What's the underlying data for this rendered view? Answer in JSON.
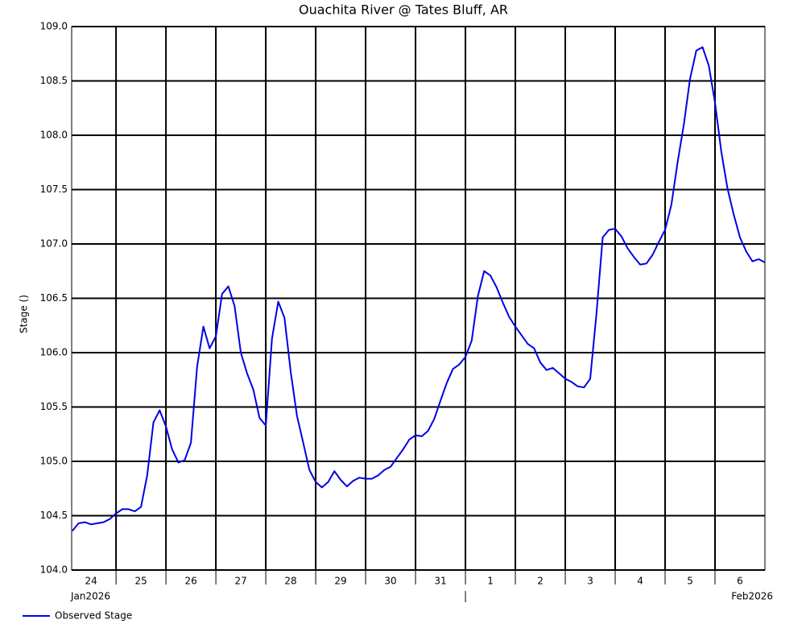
{
  "chart_data": {
    "type": "line",
    "title": "Ouachita River @ Tates Bluff, AR",
    "y_label": "Stage ()",
    "xlim": [
      "2026-01-24T02:40",
      "2026-02-07T00:00"
    ],
    "xgrid": [
      "2026-01-25T00:00",
      "2026-01-26T00:00",
      "2026-01-27T00:00",
      "2026-01-28T00:00",
      "2026-01-29T00:00",
      "2026-01-30T00:00",
      "2026-01-31T00:00",
      "2026-02-01T00:00",
      "2026-02-02T00:00",
      "2026-02-03T00:00",
      "2026-02-04T00:00",
      "2026-02-05T00:00",
      "2026-02-06T00:00"
    ],
    "xticks": [
      {
        "value": "2026-01-24T12:00",
        "label": "24"
      },
      {
        "value": "2026-01-25T12:00",
        "label": "25"
      },
      {
        "value": "2026-01-26T12:00",
        "label": "26"
      },
      {
        "value": "2026-01-27T12:00",
        "label": "27"
      },
      {
        "value": "2026-01-28T12:00",
        "label": "28"
      },
      {
        "value": "2026-01-29T12:00",
        "label": "29"
      },
      {
        "value": "2026-01-30T12:00",
        "label": "30"
      },
      {
        "value": "2026-01-31T12:00",
        "label": "31"
      },
      {
        "value": "2026-02-01T12:00",
        "label": "1"
      },
      {
        "value": "2026-02-02T12:00",
        "label": "2"
      },
      {
        "value": "2026-02-03T12:00",
        "label": "3"
      },
      {
        "value": "2026-02-04T12:00",
        "label": "4"
      },
      {
        "value": "2026-02-05T12:00",
        "label": "5"
      },
      {
        "value": "2026-02-06T12:00",
        "label": "6"
      }
    ],
    "month_ticks": [
      {
        "value": "2026-01-24T02:40",
        "label": "Jan2026"
      },
      {
        "value": "2026-02-01T00:00"
      },
      {
        "value": "2026-02-07T00:00",
        "label": "Feb2026"
      }
    ],
    "ylim": [
      104.0,
      109.0
    ],
    "yticks": [
      {
        "value": 104.0,
        "label": "104.0"
      },
      104.5,
      {
        "value": 105.0,
        "label": "105.0"
      },
      105.5,
      {
        "value": 106.0,
        "label": "106.0"
      },
      106.5,
      {
        "value": 107.0,
        "label": "107.0"
      },
      107.5,
      {
        "value": 108.0,
        "label": "108.0"
      },
      108.5,
      {
        "value": 109.0,
        "label": "109.0"
      }
    ],
    "grid": true,
    "legend": "bottom-left",
    "x": [
      "2026-01-24T03:00",
      "2026-01-24T06:00",
      "2026-01-24T09:00",
      "2026-01-24T12:00",
      "2026-01-24T15:00",
      "2026-01-24T18:00",
      "2026-01-24T21:00",
      "2026-01-25T00:00",
      "2026-01-25T03:00",
      "2026-01-25T06:00",
      "2026-01-25T09:00",
      "2026-01-25T12:00",
      "2026-01-25T15:00",
      "2026-01-25T18:00",
      "2026-01-25T21:00",
      "2026-01-26T00:00",
      "2026-01-26T03:00",
      "2026-01-26T06:00",
      "2026-01-26T09:00",
      "2026-01-26T12:00",
      "2026-01-26T15:00",
      "2026-01-26T18:00",
      "2026-01-26T21:00",
      "2026-01-27T00:00",
      "2026-01-27T03:00",
      "2026-01-27T06:00",
      "2026-01-27T09:00",
      "2026-01-27T12:00",
      "2026-01-27T15:00",
      "2026-01-27T18:00",
      "2026-01-27T21:00",
      "2026-01-28T00:00",
      "2026-01-28T03:00",
      "2026-01-28T06:00",
      "2026-01-28T09:00",
      "2026-01-28T12:00",
      "2026-01-28T15:00",
      "2026-01-28T18:00",
      "2026-01-28T21:00",
      "2026-01-29T00:00",
      "2026-01-29T03:00",
      "2026-01-29T06:00",
      "2026-01-29T09:00",
      "2026-01-29T12:00",
      "2026-01-29T15:00",
      "2026-01-29T18:00",
      "2026-01-29T21:00",
      "2026-01-30T00:00",
      "2026-01-30T03:00",
      "2026-01-30T06:00",
      "2026-01-30T09:00",
      "2026-01-30T12:00",
      "2026-01-30T15:00",
      "2026-01-30T18:00",
      "2026-01-30T21:00",
      "2026-01-31T00:00",
      "2026-01-31T03:00",
      "2026-01-31T06:00",
      "2026-01-31T09:00",
      "2026-01-31T12:00",
      "2026-01-31T15:00",
      "2026-01-31T18:00",
      "2026-01-31T21:00",
      "2026-02-01T00:00",
      "2026-02-01T03:00",
      "2026-02-01T06:00",
      "2026-02-01T09:00",
      "2026-02-01T12:00",
      "2026-02-01T15:00",
      "2026-02-01T18:00",
      "2026-02-01T21:00",
      "2026-02-02T00:00",
      "2026-02-02T03:00",
      "2026-02-02T06:00",
      "2026-02-02T09:00",
      "2026-02-02T12:00",
      "2026-02-02T15:00",
      "2026-02-02T18:00",
      "2026-02-02T21:00",
      "2026-02-03T00:00",
      "2026-02-03T03:00",
      "2026-02-03T06:00",
      "2026-02-03T09:00",
      "2026-02-03T12:00",
      "2026-02-03T15:00",
      "2026-02-03T18:00",
      "2026-02-03T21:00",
      "2026-02-04T00:00",
      "2026-02-04T03:00",
      "2026-02-04T06:00",
      "2026-02-04T09:00",
      "2026-02-04T12:00",
      "2026-02-04T15:00",
      "2026-02-04T18:00",
      "2026-02-04T21:00",
      "2026-02-05T00:00",
      "2026-02-05T03:00",
      "2026-02-05T06:00",
      "2026-02-05T09:00",
      "2026-02-05T12:00",
      "2026-02-05T15:00",
      "2026-02-05T18:00",
      "2026-02-05T21:00",
      "2026-02-06T00:00",
      "2026-02-06T03:00",
      "2026-02-06T06:00",
      "2026-02-06T09:00",
      "2026-02-06T12:00",
      "2026-02-06T15:00",
      "2026-02-06T18:00",
      "2026-02-06T21:00",
      "2026-02-07T00:00"
    ],
    "series": [
      {
        "name": "Observed Stage",
        "color": "#0000e6",
        "values": [
          104.36,
          104.43,
          104.44,
          104.42,
          104.43,
          104.44,
          104.47,
          104.52,
          104.56,
          104.56,
          104.54,
          104.58,
          104.87,
          105.36,
          105.47,
          105.32,
          105.11,
          104.99,
          105.01,
          105.17,
          105.87,
          106.24,
          106.04,
          106.15,
          106.54,
          106.61,
          106.43,
          106.0,
          105.81,
          105.66,
          105.4,
          105.33,
          106.13,
          106.47,
          106.32,
          105.82,
          105.42,
          105.17,
          104.92,
          104.81,
          104.76,
          104.81,
          104.91,
          104.83,
          104.77,
          104.82,
          104.85,
          104.84,
          104.84,
          104.87,
          104.92,
          104.95,
          105.03,
          105.11,
          105.2,
          105.24,
          105.23,
          105.28,
          105.39,
          105.56,
          105.72,
          105.85,
          105.89,
          105.96,
          106.11,
          106.52,
          106.75,
          106.71,
          106.6,
          106.46,
          106.33,
          106.24,
          106.16,
          106.08,
          106.04,
          105.91,
          105.84,
          105.86,
          105.81,
          105.76,
          105.73,
          105.69,
          105.68,
          105.76,
          106.36,
          107.06,
          107.13,
          107.14,
          107.07,
          106.96,
          106.88,
          106.81,
          106.82,
          106.9,
          107.02,
          107.13,
          107.36,
          107.75,
          108.1,
          108.52,
          108.78,
          108.81,
          108.64,
          108.3,
          107.85,
          107.51,
          107.27,
          107.06,
          106.93,
          106.84,
          106.86,
          106.83
        ]
      }
    ]
  }
}
